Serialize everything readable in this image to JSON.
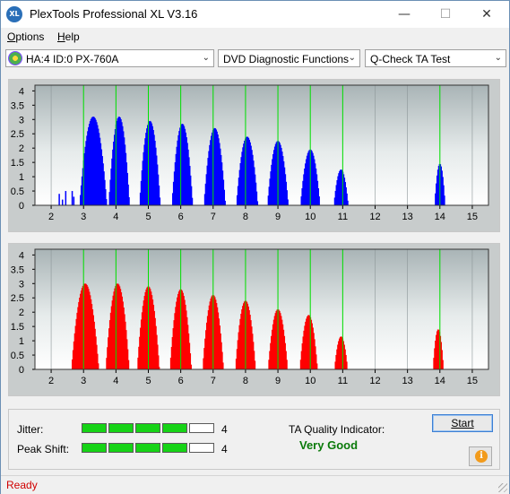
{
  "window": {
    "title": "PlexTools Professional XL V3.16",
    "icon_text": "XL"
  },
  "menu": [
    {
      "label": "Options",
      "accel": "O",
      "rest": "ptions"
    },
    {
      "label": "Help",
      "accel": "H",
      "rest": "elp"
    }
  ],
  "toolbar": {
    "drive": "HA:4 ID:0  PX-760A",
    "function": "DVD Diagnostic Functions",
    "test": "Q-Check TA Test"
  },
  "charts_common": {
    "x_ticks": [
      "2",
      "3",
      "4",
      "5",
      "6",
      "7",
      "8",
      "9",
      "10",
      "11",
      "12",
      "13",
      "14",
      "15"
    ],
    "y_ticks": [
      "0",
      "0.5",
      "1",
      "1.5",
      "2",
      "2.5",
      "3",
      "3.5",
      "4"
    ],
    "green_lines_at": [
      3,
      4,
      5,
      6,
      7,
      8,
      9,
      10,
      11,
      14
    ]
  },
  "chart_data": [
    {
      "type": "bar",
      "name": "top",
      "color": "#0000ff",
      "xlim": [
        1.5,
        15.5
      ],
      "ylim": [
        0,
        4.2
      ],
      "peaks": [
        {
          "center": 3.3,
          "height": 3.1,
          "width": 0.42
        },
        {
          "center": 4.1,
          "height": 3.1,
          "width": 0.32
        },
        {
          "center": 5.05,
          "height": 2.95,
          "width": 0.32
        },
        {
          "center": 6.05,
          "height": 2.85,
          "width": 0.32
        },
        {
          "center": 7.05,
          "height": 2.7,
          "width": 0.33
        },
        {
          "center": 8.05,
          "height": 2.4,
          "width": 0.33
        },
        {
          "center": 9.0,
          "height": 2.25,
          "width": 0.32
        },
        {
          "center": 10.0,
          "height": 1.95,
          "width": 0.3
        },
        {
          "center": 10.95,
          "height": 1.25,
          "width": 0.22
        },
        {
          "center": 14.0,
          "height": 1.45,
          "width": 0.16
        }
      ],
      "noise": [
        {
          "x": 2.25,
          "y": 0.4
        },
        {
          "x": 2.35,
          "y": 0.2
        },
        {
          "x": 2.45,
          "y": 0.5
        },
        {
          "x": 2.65,
          "y": 0.5
        },
        {
          "x": 2.7,
          "y": 0.3
        }
      ]
    },
    {
      "type": "bar",
      "name": "bottom",
      "color": "#ff0000",
      "xlim": [
        1.5,
        15.5
      ],
      "ylim": [
        0,
        4.2
      ],
      "peaks": [
        {
          "center": 3.05,
          "height": 3.0,
          "width": 0.42
        },
        {
          "center": 4.05,
          "height": 3.0,
          "width": 0.36
        },
        {
          "center": 5.0,
          "height": 2.9,
          "width": 0.34
        },
        {
          "center": 6.0,
          "height": 2.8,
          "width": 0.33
        },
        {
          "center": 7.0,
          "height": 2.6,
          "width": 0.32
        },
        {
          "center": 8.0,
          "height": 2.4,
          "width": 0.31
        },
        {
          "center": 9.0,
          "height": 2.1,
          "width": 0.3
        },
        {
          "center": 9.95,
          "height": 1.9,
          "width": 0.27
        },
        {
          "center": 10.95,
          "height": 1.15,
          "width": 0.2
        },
        {
          "center": 13.95,
          "height": 1.4,
          "width": 0.16
        }
      ],
      "noise": []
    }
  ],
  "quality": {
    "jitter_label": "Jitter:",
    "jitter_value": "4",
    "jitter_level": 4,
    "peak_label": "Peak Shift:",
    "peak_value": "4",
    "peak_level": 4,
    "segments": 5,
    "ta_label": "TA Quality Indicator:",
    "ta_value": "Very Good",
    "start_label": "Start",
    "info_icon_text": "i"
  },
  "status": {
    "text": "Ready"
  }
}
